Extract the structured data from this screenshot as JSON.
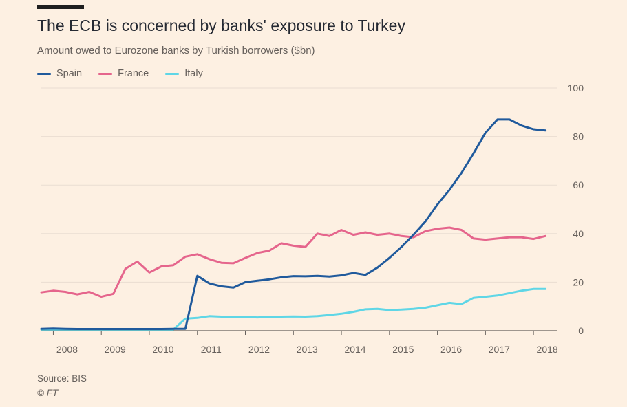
{
  "header": {
    "title": "The ECB is concerned by banks' exposure to Turkey",
    "subtitle": "Amount owed to Eurozone banks by Turkish borrowers ($bn)"
  },
  "footer": {
    "source": "Source: BIS",
    "credit": "© FT"
  },
  "colors": {
    "background": "#fdf0e2",
    "gridline": "#e9ddd1",
    "axis": "#66605c",
    "spain": "#205a9c",
    "france": "#e5658c",
    "italy": "#5fd6e6"
  },
  "chart_data": {
    "type": "line",
    "title": "The ECB is concerned by banks' exposure to Turkey",
    "subtitle": "Amount owed to Eurozone banks by Turkish borrowers ($bn)",
    "xlabel": "",
    "ylabel": "",
    "ylim": [
      0,
      100
    ],
    "xlim": [
      2007.75,
      2018.5
    ],
    "yticks": [
      0,
      20,
      40,
      60,
      80,
      100
    ],
    "xticks": [
      "2008",
      "2009",
      "2010",
      "2011",
      "2012",
      "2013",
      "2014",
      "2015",
      "2016",
      "2017",
      "2018"
    ],
    "y_axis_side": "right",
    "grid": true,
    "legend_position": "top-left",
    "series": [
      {
        "name": "Spain",
        "color": "#205a9c",
        "x": [
          2007.75,
          2008.0,
          2008.25,
          2008.5,
          2008.75,
          2009.0,
          2009.25,
          2009.5,
          2009.75,
          2010.0,
          2010.25,
          2010.5,
          2010.75,
          2011.0,
          2011.25,
          2011.5,
          2011.75,
          2012.0,
          2012.25,
          2012.5,
          2012.75,
          2013.0,
          2013.25,
          2013.5,
          2013.75,
          2014.0,
          2014.25,
          2014.5,
          2014.75,
          2015.0,
          2015.25,
          2015.5,
          2015.75,
          2016.0,
          2016.25,
          2016.5,
          2016.75,
          2017.0,
          2017.25,
          2017.5,
          2017.75,
          2018.0,
          2018.25
        ],
        "values": [
          0.8,
          0.9,
          0.8,
          0.7,
          0.7,
          0.7,
          0.7,
          0.7,
          0.7,
          0.7,
          0.7,
          0.8,
          0.8,
          22.6,
          19.5,
          18.3,
          17.8,
          20.0,
          20.6,
          21.2,
          22.0,
          22.5,
          22.4,
          22.6,
          22.3,
          22.8,
          23.8,
          23.0,
          26.0,
          30.0,
          34.5,
          39.5,
          45.0,
          52.0,
          58.0,
          65.0,
          73.0,
          81.5,
          87.0,
          87.0,
          84.5,
          83.0,
          82.5
        ]
      },
      {
        "name": "France",
        "color": "#e5658c",
        "x": [
          2007.75,
          2008.0,
          2008.25,
          2008.5,
          2008.75,
          2009.0,
          2009.25,
          2009.5,
          2009.75,
          2010.0,
          2010.25,
          2010.5,
          2010.75,
          2011.0,
          2011.25,
          2011.5,
          2011.75,
          2012.0,
          2012.25,
          2012.5,
          2012.75,
          2013.0,
          2013.25,
          2013.5,
          2013.75,
          2014.0,
          2014.25,
          2014.5,
          2014.75,
          2015.0,
          2015.25,
          2015.5,
          2015.75,
          2016.0,
          2016.25,
          2016.5,
          2016.75,
          2017.0,
          2017.25,
          2017.5,
          2017.75,
          2018.0,
          2018.25
        ],
        "values": [
          15.8,
          16.5,
          16.0,
          15.0,
          16.0,
          14.0,
          15.2,
          25.5,
          28.5,
          24.0,
          26.5,
          27.0,
          30.5,
          31.5,
          29.5,
          28.0,
          27.8,
          30.0,
          32.0,
          33.0,
          36.0,
          35.0,
          34.5,
          40.0,
          39.0,
          41.5,
          39.5,
          40.5,
          39.5,
          40.0,
          39.0,
          38.5,
          41.0,
          42.0,
          42.5,
          41.5,
          38.0,
          37.5,
          38.0,
          38.5,
          38.5,
          37.8,
          39.0
        ]
      },
      {
        "name": "Italy",
        "color": "#5fd6e6",
        "x": [
          2007.75,
          2008.0,
          2008.25,
          2008.5,
          2008.75,
          2009.0,
          2009.25,
          2009.5,
          2009.75,
          2010.0,
          2010.25,
          2010.5,
          2010.75,
          2011.0,
          2011.25,
          2011.5,
          2011.75,
          2012.0,
          2012.25,
          2012.5,
          2012.75,
          2013.0,
          2013.25,
          2013.5,
          2013.75,
          2014.0,
          2014.25,
          2014.5,
          2014.75,
          2015.0,
          2015.25,
          2015.5,
          2015.75,
          2016.0,
          2016.25,
          2016.5,
          2016.75,
          2017.0,
          2017.25,
          2017.5,
          2017.75,
          2018.0,
          2018.25
        ],
        "values": [
          0.5,
          0.5,
          0.5,
          0.5,
          0.5,
          0.5,
          0.5,
          0.5,
          0.5,
          0.5,
          0.5,
          0.5,
          5.0,
          5.3,
          6.0,
          5.8,
          5.8,
          5.7,
          5.5,
          5.7,
          5.8,
          5.9,
          5.8,
          6.0,
          6.5,
          7.0,
          7.8,
          8.8,
          9.0,
          8.5,
          8.7,
          9.0,
          9.5,
          10.5,
          11.5,
          11.0,
          13.5,
          14.0,
          14.5,
          15.5,
          16.5,
          17.2,
          17.2
        ]
      }
    ]
  }
}
